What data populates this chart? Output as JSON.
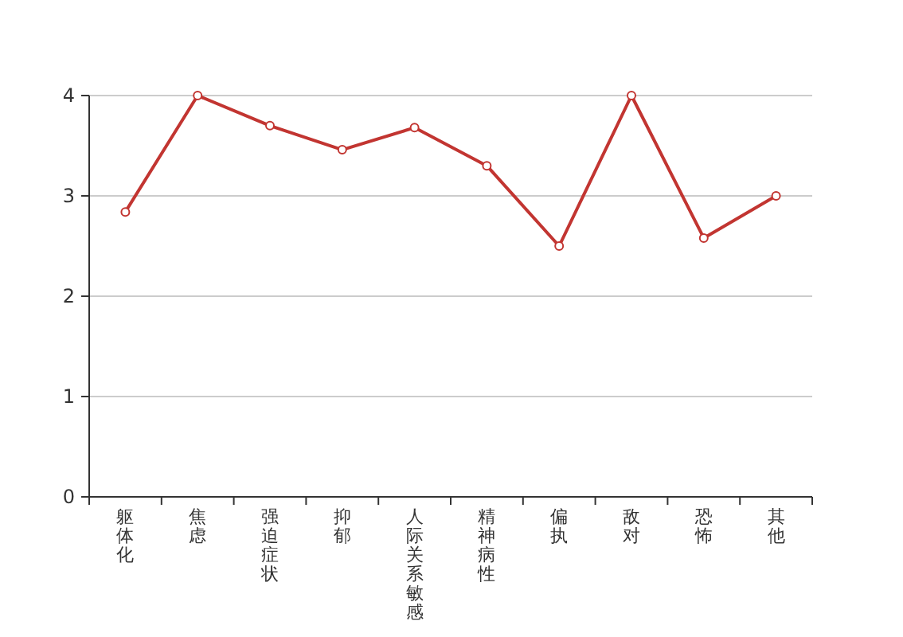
{
  "chart_data": {
    "type": "line",
    "categories": [
      "躯体化",
      "焦虑",
      "强迫症状",
      "抑郁",
      "人际关系敏感",
      "精神病性",
      "偏执",
      "敌对",
      "恐怖",
      "其他"
    ],
    "series": [
      {
        "color": "#c23531",
        "values": [
          2.84,
          4.0,
          3.7,
          3.46,
          3.68,
          3.3,
          2.5,
          4.0,
          2.58,
          3.0
        ]
      }
    ],
    "ylim": [
      0,
      4
    ],
    "yticks": [
      0,
      1,
      2,
      3,
      4
    ],
    "grid": "y",
    "marker": "circle",
    "line_style": "solid"
  }
}
